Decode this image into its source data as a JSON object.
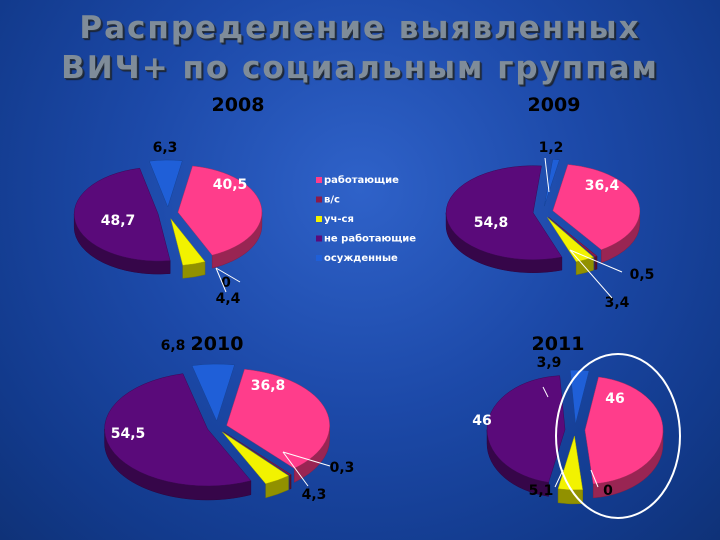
{
  "title": {
    "line1": "Распределение выявленных",
    "line2": "ВИЧ+ по социальным группам"
  },
  "colors": {
    "background": "#1c49a8",
    "highlight_oval": "#ffffff"
  },
  "legend": {
    "items": [
      {
        "label": "работающие",
        "color": "#ff3d8b"
      },
      {
        "label": "в/с",
        "color": "#8b1a4a"
      },
      {
        "label": "уч-ся",
        "color": "#f2f200"
      },
      {
        "label": "не работающие",
        "color": "#5a0a7a"
      },
      {
        "label": "осужденные",
        "color": "#1f5fd8"
      }
    ]
  },
  "chart_data": [
    {
      "type": "pie",
      "title": "2008",
      "categories": [
        "работающие",
        "в/с",
        "уч-ся",
        "не работающие",
        "осужденные"
      ],
      "values": [
        40.5,
        0,
        4.4,
        48.7,
        6.3
      ],
      "labels": [
        "40,5",
        "0",
        "4,4",
        "48,7",
        "6,3"
      ]
    },
    {
      "type": "pie",
      "title": "2009",
      "categories": [
        "работающие",
        "в/с",
        "уч-ся",
        "не работающие",
        "осужденные"
      ],
      "values": [
        36.4,
        0.5,
        3.4,
        54.8,
        1.2
      ],
      "labels": [
        "36,4",
        "0,5",
        "3,4",
        "54,8",
        "1,2"
      ]
    },
    {
      "type": "pie",
      "title": "2010",
      "categories": [
        "работающие",
        "в/с",
        "уч-ся",
        "не работающие",
        "осужденные"
      ],
      "values": [
        36.8,
        0.3,
        4.3,
        54.5,
        6.8
      ],
      "labels": [
        "36,8",
        "0,3",
        "4,3",
        "54,5",
        "6,8"
      ]
    },
    {
      "type": "pie",
      "title": "2011",
      "categories": [
        "работающие",
        "в/с",
        "уч-ся",
        "не работающие",
        "осужденные"
      ],
      "values": [
        46,
        0,
        5.1,
        46,
        3.9
      ],
      "labels": [
        "46",
        "0",
        "5,1",
        "46",
        "3,9"
      ],
      "highlighted_slice": "работающие"
    }
  ]
}
